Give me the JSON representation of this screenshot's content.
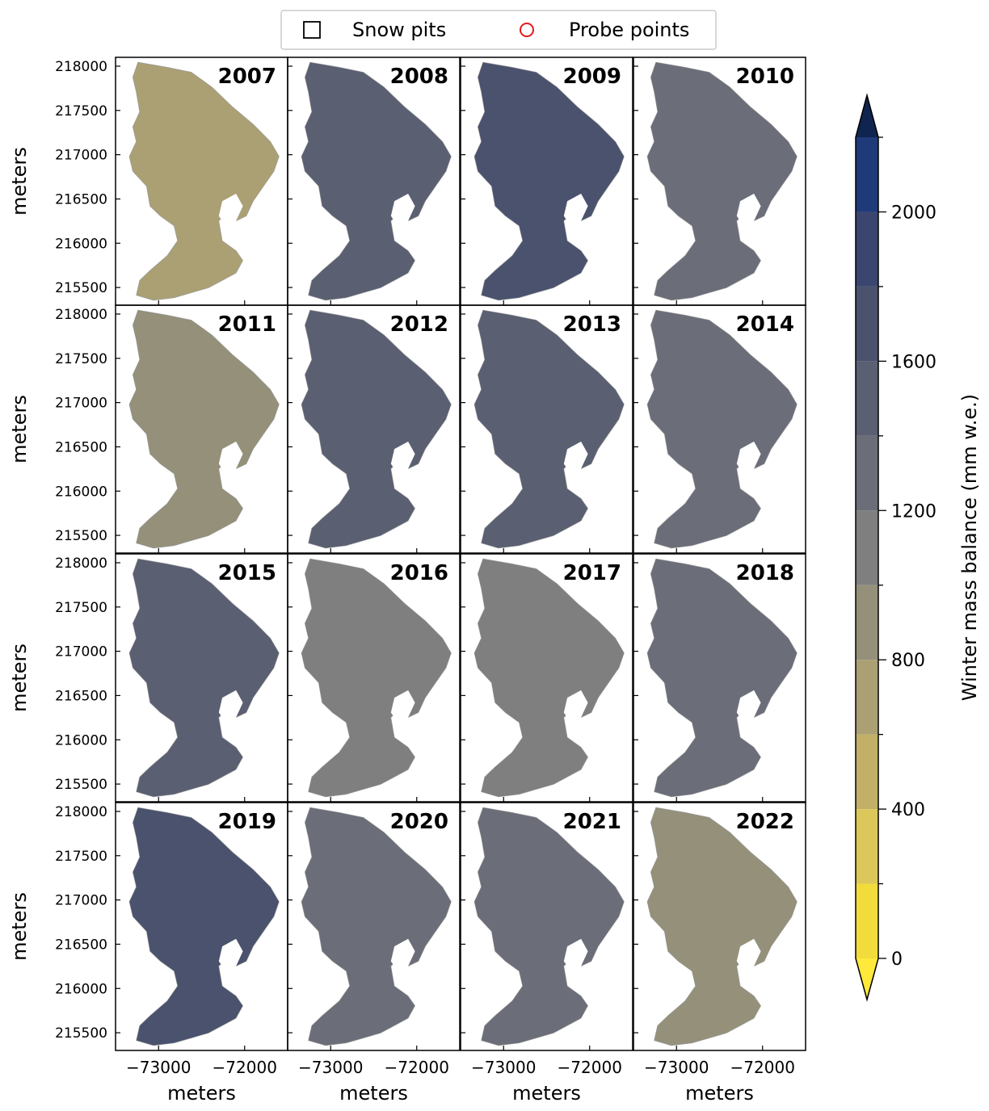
{
  "chart_data": {
    "type": "heatmap",
    "description_free": true,
    "legend": {
      "placement": "top-center",
      "entries": [
        {
          "label": "Snow pits",
          "marker": "square"
        },
        {
          "label": "Probe points",
          "marker": "circle"
        }
      ]
    },
    "x_axis": {
      "label": "meters",
      "range": [
        -73500,
        -71500
      ],
      "ticks": [
        -73000,
        -72000
      ],
      "tick_labels": [
        "−73000",
        "−72000"
      ]
    },
    "y_axis": {
      "label": "meters",
      "range": [
        215300,
        218100
      ],
      "ticks": [
        215500,
        216000,
        216500,
        217000,
        217500,
        218000
      ],
      "tick_labels": [
        "215500",
        "216000",
        "216500",
        "217000",
        "217500",
        "218000"
      ]
    },
    "colorbar": {
      "label": "Winter mass balance (mm w.e.)",
      "range": [
        0,
        2200
      ],
      "levels": [
        0,
        200,
        400,
        600,
        800,
        1000,
        1200,
        1400,
        1600,
        1800,
        2000,
        2200
      ],
      "ticks": [
        0,
        400,
        800,
        1200,
        1600,
        2000
      ],
      "extend": "both",
      "colors": [
        "#f2dc3c",
        "#dcc85a",
        "#c2b068",
        "#aaa074",
        "#94907a",
        "#7f7f7f",
        "#6b6e78",
        "#5a5f72",
        "#4a526e",
        "#3a4670",
        "#1f3a78",
        "#002f6c"
      ],
      "under_color": "#ffe93a",
      "over_color": "#0f2550"
    },
    "panels": [
      {
        "year": "2007",
        "mean_balance": 600
      },
      {
        "year": "2008",
        "mean_balance": 1500
      },
      {
        "year": "2009",
        "mean_balance": 1600
      },
      {
        "year": "2010",
        "mean_balance": 1300
      },
      {
        "year": "2011",
        "mean_balance": 800
      },
      {
        "year": "2012",
        "mean_balance": 1500
      },
      {
        "year": "2013",
        "mean_balance": 1400
      },
      {
        "year": "2014",
        "mean_balance": 1200
      },
      {
        "year": "2015",
        "mean_balance": 1400
      },
      {
        "year": "2016",
        "mean_balance": 1100
      },
      {
        "year": "2017",
        "mean_balance": 1100
      },
      {
        "year": "2018",
        "mean_balance": 1200
      },
      {
        "year": "2019",
        "mean_balance": 1600
      },
      {
        "year": "2020",
        "mean_balance": 1300
      },
      {
        "year": "2021",
        "mean_balance": 1300
      },
      {
        "year": "2022",
        "mean_balance": 800
      }
    ]
  }
}
